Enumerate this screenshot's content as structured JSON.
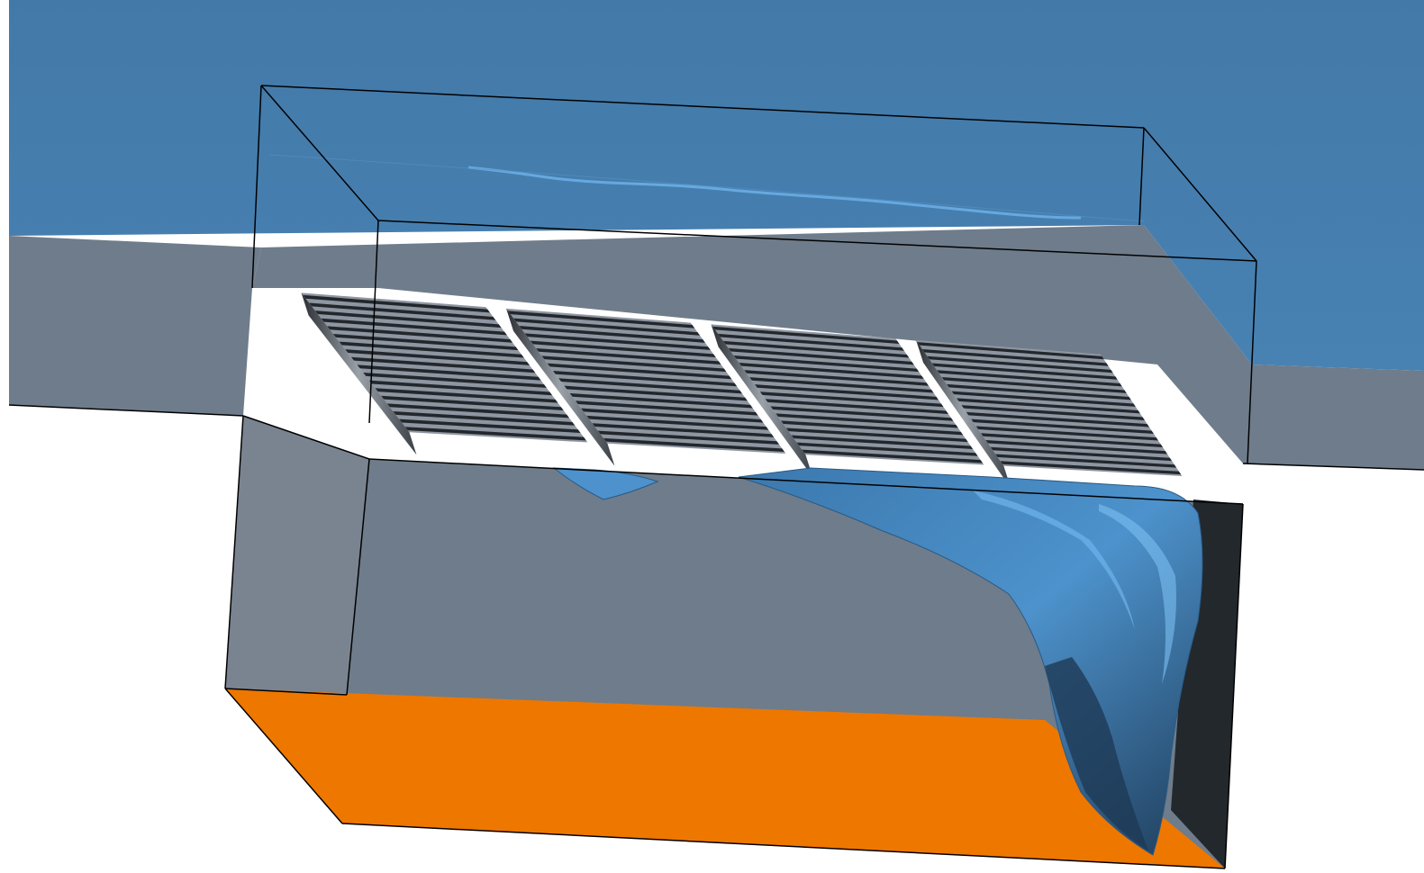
{
  "scene": {
    "type": "3d-render",
    "background_color": "#ffffff",
    "colors": {
      "water_surface": "#4478a6",
      "water_highlight": "#6fb3ec",
      "ground": "#6f7c8b",
      "ground_side": "#7a8491",
      "channel_bottom": "#ee7700",
      "right_wall": "#23282d",
      "plume": "#3f7fb6",
      "plume_light": "#5aa3e0",
      "plume_dark": "#1e3a55",
      "grating": "#3a3f45",
      "outline": "#000000"
    },
    "grating_sections": 4,
    "icons": [
      "grating-inlet",
      "water-plume",
      "bounding-box"
    ]
  }
}
